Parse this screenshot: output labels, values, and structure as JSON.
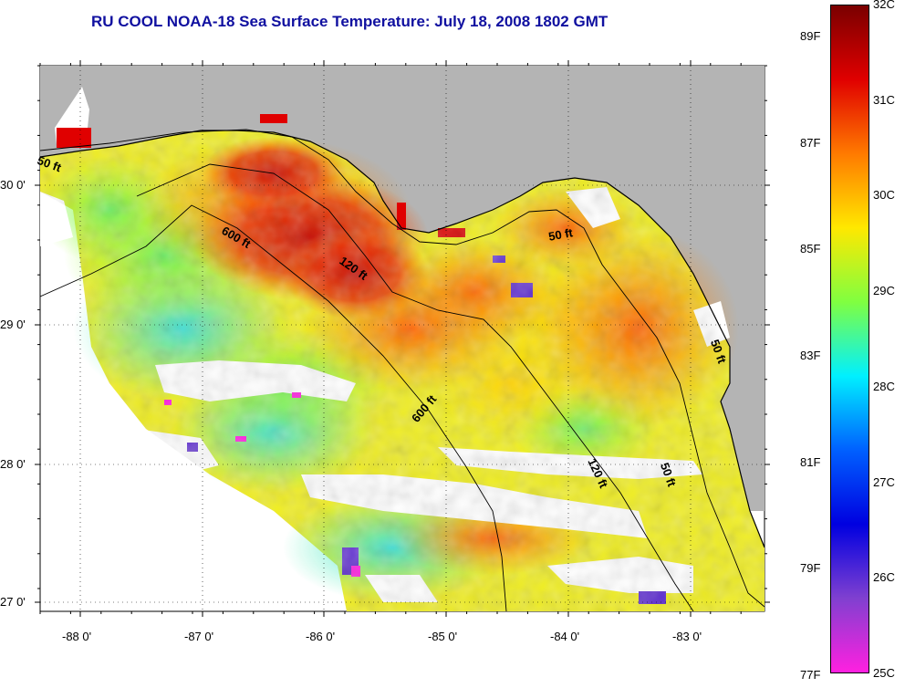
{
  "title": "RU COOL  NOAA-18  Sea Surface Temperature:  July 18, 2008 1802 GMT",
  "map": {
    "lon_ticks": [
      "-88 0'",
      "-87 0'",
      "-86 0'",
      "-85 0'",
      "-84 0'",
      "-83 0'"
    ],
    "lat_ticks": [
      "30 0'",
      "29 0'",
      "28 0'",
      "27 0'"
    ],
    "contour_labels": [
      "50 ft",
      "600 ft",
      "120 ft",
      "50 ft",
      "600 ft",
      "120 ft",
      "50 ft",
      "50 ft"
    ]
  },
  "colorbar": {
    "celsius": [
      "32C",
      "31C",
      "30C",
      "29C",
      "28C",
      "27C",
      "26C",
      "25C"
    ],
    "fahrenheit": [
      "89F",
      "87F",
      "85F",
      "83F",
      "81F",
      "79F",
      "77F"
    ],
    "colors": [
      "#7a0000",
      "#e00000",
      "#ff7a00",
      "#ffe800",
      "#80ff40",
      "#00f0ff",
      "#0060ff",
      "#0000e0",
      "#8040d0",
      "#ff20e0"
    ]
  }
}
